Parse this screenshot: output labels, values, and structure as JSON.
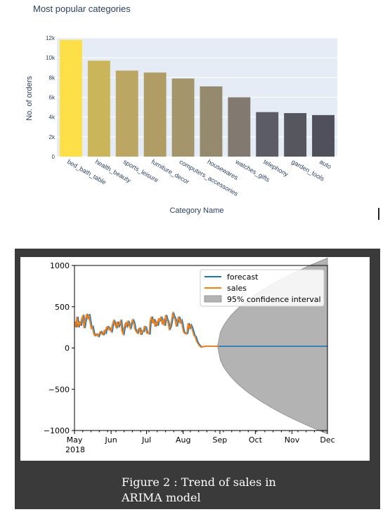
{
  "bar_chart": {
    "title": "Most popular categories",
    "xlabel": "Category Name",
    "ylabel": "No. of orders",
    "yticks": [
      "0",
      "2k",
      "4k",
      "6k",
      "8k",
      "10k",
      "12k"
    ]
  },
  "arima_chart": {
    "yticks": [
      "1000",
      "500",
      "0",
      "−500",
      "−1000"
    ],
    "xticks": [
      "May",
      "Jun",
      "Jul",
      "Aug",
      "Sep",
      "Oct",
      "Nov",
      "Dec"
    ],
    "year_label": "2018",
    "legend": [
      "forecast",
      "sales",
      "95% confidence interval"
    ]
  },
  "caption": {
    "line1": "Figure 2 : Trend of sales  in",
    "line2": "ARIMA model"
  },
  "colors": {
    "plot_bg": "#e5ecf6",
    "forecast": "#1f77b4",
    "sales": "#ff7f0e",
    "confidence": "#b3b3b3",
    "panel": "#3a3a3a"
  },
  "chart_data": [
    {
      "type": "bar",
      "title": "Most popular categories",
      "xlabel": "Category Name",
      "ylabel": "No. of orders",
      "ylim": [
        0,
        12000
      ],
      "categories": [
        "bed_bath_table",
        "health_beauty",
        "sports_leisure",
        "furniture_decor",
        "computers_accessories",
        "housewares",
        "watches_gifts",
        "telephony",
        "garden_tools",
        "auto"
      ],
      "values": [
        11800,
        9700,
        8700,
        8500,
        7900,
        7100,
        6000,
        4500,
        4400,
        4200
      ],
      "colors": [
        "#fde047",
        "#cbb55b",
        "#bba664",
        "#b09d66",
        "#a5956c",
        "#958a6d",
        "#827a70",
        "#5c5c66",
        "#56565f",
        "#50505c"
      ],
      "grid": true
    },
    {
      "type": "line",
      "xlim": [
        "2018-05-01",
        "2018-12-01"
      ],
      "ylim": [
        -1000,
        1000
      ],
      "legend_position": "top-right",
      "series": [
        {
          "name": "sales",
          "x_range": [
            "2018-05-01",
            "2018-08-31"
          ],
          "values": [
            320,
            250,
            380,
            250,
            320,
            270,
            360,
            390,
            240,
            330,
            400,
            360,
            410,
            320,
            240,
            260,
            180,
            150,
            170,
            160,
            140,
            180,
            200,
            170,
            160,
            210,
            180,
            250,
            260,
            220,
            240,
            200,
            280,
            330,
            290,
            250,
            320,
            260,
            300,
            330,
            210,
            170,
            250,
            300,
            260,
            330,
            280,
            240,
            300,
            340,
            310,
            230,
            200,
            180,
            230,
            240,
            160,
            210,
            200,
            260,
            250,
            180,
            180,
            170,
            330,
            380,
            300,
            350,
            260,
            320,
            270,
            350,
            330,
            380,
            300,
            340,
            270,
            400,
            350,
            310,
            230,
            260,
            330,
            420,
            380,
            350,
            260,
            330,
            380,
            310,
            340,
            280,
            200,
            180,
            170,
            180,
            300,
            240,
            280,
            250,
            200,
            150,
            140,
            90,
            60,
            40,
            20,
            10,
            20,
            15,
            20,
            20,
            25,
            20,
            22,
            20,
            22,
            20,
            20,
            22,
            20,
            21,
            20
          ]
        },
        {
          "name": "forecast",
          "x_range": [
            "2018-05-01",
            "2018-12-01"
          ],
          "values_note_end": 20,
          "values": [
            20
          ]
        }
      ],
      "confidence_interval": {
        "name": "95% confidence interval",
        "start": "2018-08-30",
        "end": "2018-12-01",
        "upper_end": 1090,
        "lower_end": -1040
      }
    }
  ]
}
